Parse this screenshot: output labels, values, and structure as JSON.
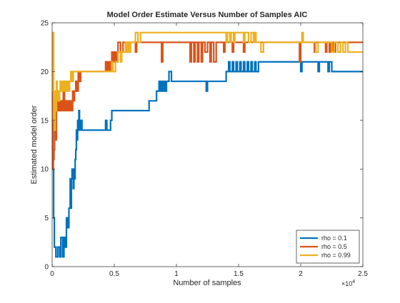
{
  "chart_data": {
    "type": "line",
    "title": "Model Order Estimate Versus Number of Samples AIC",
    "xlabel": "Number of samples",
    "ylabel": "Estimated model order",
    "xlim": [
      0,
      25000
    ],
    "ylim": [
      0,
      25
    ],
    "x_exponent_label": "×10",
    "x_exponent_power": "4",
    "x_ticks": [
      0,
      5000,
      10000,
      15000,
      20000,
      25000
    ],
    "x_tick_labels": [
      "0",
      "0.5",
      "1",
      "1.5",
      "2",
      "2.5"
    ],
    "y_ticks": [
      0,
      5,
      10,
      15,
      20,
      25
    ],
    "y_tick_labels": [
      "0",
      "5",
      "10",
      "15",
      "20",
      "25"
    ],
    "grid": false,
    "legend_position": "bottom-right",
    "series": [
      {
        "name": "rho = 0.1",
        "color": "#0072BD",
        "points": [
          [
            0,
            20
          ],
          [
            60,
            10
          ],
          [
            120,
            5
          ],
          [
            180,
            2
          ],
          [
            300,
            1
          ],
          [
            450,
            2
          ],
          [
            600,
            1
          ],
          [
            700,
            3
          ],
          [
            850,
            1
          ],
          [
            950,
            3
          ],
          [
            1050,
            2
          ],
          [
            1150,
            5
          ],
          [
            1250,
            4
          ],
          [
            1350,
            6
          ],
          [
            1450,
            9
          ],
          [
            1500,
            6
          ],
          [
            1550,
            9
          ],
          [
            1600,
            10
          ],
          [
            1700,
            8
          ],
          [
            1750,
            10
          ],
          [
            1800,
            9
          ],
          [
            1850,
            11
          ],
          [
            1900,
            12
          ],
          [
            1950,
            14
          ],
          [
            2000,
            13
          ],
          [
            2050,
            15
          ],
          [
            2100,
            14
          ],
          [
            2150,
            16
          ],
          [
            2200,
            14
          ],
          [
            2300,
            15
          ],
          [
            2400,
            14
          ],
          [
            4200,
            14
          ],
          [
            4300,
            15
          ],
          [
            4400,
            14
          ],
          [
            4600,
            14
          ],
          [
            4700,
            15
          ],
          [
            4800,
            16
          ],
          [
            7600,
            16
          ],
          [
            7800,
            17
          ],
          [
            8200,
            17
          ],
          [
            8400,
            18
          ],
          [
            8600,
            19
          ],
          [
            8700,
            18
          ],
          [
            8800,
            19
          ],
          [
            8900,
            18
          ],
          [
            9000,
            19
          ],
          [
            9100,
            18
          ],
          [
            9200,
            19
          ],
          [
            9400,
            20
          ],
          [
            9600,
            19
          ],
          [
            12300,
            19
          ],
          [
            12400,
            18
          ],
          [
            12500,
            19
          ],
          [
            13800,
            19
          ],
          [
            14000,
            20
          ],
          [
            14200,
            21
          ],
          [
            14300,
            20
          ],
          [
            14500,
            21
          ],
          [
            14600,
            20
          ],
          [
            14800,
            21
          ],
          [
            14900,
            20
          ],
          [
            15100,
            21
          ],
          [
            15200,
            20
          ],
          [
            15400,
            21
          ],
          [
            15500,
            20
          ],
          [
            15700,
            21
          ],
          [
            15800,
            20
          ],
          [
            16000,
            21
          ],
          [
            16100,
            20
          ],
          [
            16300,
            21
          ],
          [
            16400,
            20
          ],
          [
            16600,
            21
          ],
          [
            19900,
            21
          ],
          [
            20000,
            20
          ],
          [
            20100,
            21
          ],
          [
            21300,
            21
          ],
          [
            21400,
            20
          ],
          [
            21500,
            21
          ],
          [
            22000,
            21
          ],
          [
            22200,
            20
          ],
          [
            22300,
            21
          ],
          [
            22500,
            20
          ],
          [
            25000,
            20
          ]
        ]
      },
      {
        "name": "rho = 0.5",
        "color": "#D95319",
        "points": [
          [
            0,
            21
          ],
          [
            50,
            10
          ],
          [
            100,
            11
          ],
          [
            150,
            12
          ],
          [
            200,
            16
          ],
          [
            300,
            13
          ],
          [
            350,
            17
          ],
          [
            450,
            16
          ],
          [
            500,
            17
          ],
          [
            600,
            16
          ],
          [
            700,
            17
          ],
          [
            800,
            16
          ],
          [
            900,
            18
          ],
          [
            1000,
            16
          ],
          [
            1100,
            17
          ],
          [
            1200,
            16
          ],
          [
            1300,
            17
          ],
          [
            1400,
            16
          ],
          [
            1500,
            17
          ],
          [
            1600,
            16
          ],
          [
            1650,
            18
          ],
          [
            1700,
            17
          ],
          [
            1800,
            18
          ],
          [
            1900,
            19
          ],
          [
            2000,
            18
          ],
          [
            2100,
            20
          ],
          [
            2200,
            19
          ],
          [
            2300,
            20
          ],
          [
            4200,
            20
          ],
          [
            4300,
            21
          ],
          [
            4400,
            20
          ],
          [
            4500,
            21
          ],
          [
            4600,
            20
          ],
          [
            4700,
            21
          ],
          [
            4800,
            22
          ],
          [
            4900,
            21
          ],
          [
            5000,
            22
          ],
          [
            5100,
            21
          ],
          [
            5200,
            22
          ],
          [
            5300,
            23
          ],
          [
            5500,
            22
          ],
          [
            5700,
            23
          ],
          [
            5900,
            22
          ],
          [
            6100,
            23
          ],
          [
            6200,
            22
          ],
          [
            6300,
            23
          ],
          [
            6600,
            23
          ],
          [
            6700,
            22
          ],
          [
            6800,
            23
          ],
          [
            8700,
            23
          ],
          [
            8800,
            21
          ],
          [
            8900,
            23
          ],
          [
            11000,
            23
          ],
          [
            11100,
            21
          ],
          [
            11200,
            23
          ],
          [
            11400,
            21
          ],
          [
            11500,
            23
          ],
          [
            11700,
            21
          ],
          [
            11800,
            23
          ],
          [
            12000,
            21
          ],
          [
            12100,
            23
          ],
          [
            12300,
            22
          ],
          [
            12500,
            23
          ],
          [
            12700,
            21
          ],
          [
            12800,
            23
          ],
          [
            13000,
            21
          ],
          [
            13200,
            23
          ],
          [
            13800,
            22
          ],
          [
            13900,
            23
          ],
          [
            14500,
            22
          ],
          [
            14600,
            23
          ],
          [
            15300,
            23
          ],
          [
            15400,
            22
          ],
          [
            15500,
            23
          ],
          [
            19800,
            23
          ],
          [
            19900,
            21
          ],
          [
            20000,
            23
          ],
          [
            21000,
            23
          ],
          [
            21100,
            22
          ],
          [
            21200,
            23
          ],
          [
            22000,
            22
          ],
          [
            22100,
            23
          ],
          [
            22300,
            22
          ],
          [
            22400,
            23
          ],
          [
            22600,
            22
          ],
          [
            22800,
            23
          ],
          [
            25000,
            23
          ]
        ]
      },
      {
        "name": "rho = 0.99",
        "color": "#EDB120",
        "points": [
          [
            0,
            24
          ],
          [
            40,
            18
          ],
          [
            80,
            24
          ],
          [
            120,
            15
          ],
          [
            160,
            17
          ],
          [
            200,
            14
          ],
          [
            250,
            18
          ],
          [
            300,
            16
          ],
          [
            350,
            19
          ],
          [
            400,
            17
          ],
          [
            450,
            18
          ],
          [
            550,
            17
          ],
          [
            600,
            18
          ],
          [
            650,
            19
          ],
          [
            750,
            18
          ],
          [
            850,
            19
          ],
          [
            950,
            18
          ],
          [
            1050,
            19
          ],
          [
            1100,
            18
          ],
          [
            1200,
            19
          ],
          [
            1300,
            18
          ],
          [
            1400,
            19
          ],
          [
            1500,
            20
          ],
          [
            1600,
            19
          ],
          [
            1700,
            20
          ],
          [
            4700,
            20
          ],
          [
            4800,
            21
          ],
          [
            4900,
            20
          ],
          [
            5100,
            21
          ],
          [
            5300,
            22
          ],
          [
            5500,
            21
          ],
          [
            5600,
            22
          ],
          [
            5800,
            22
          ],
          [
            5900,
            23
          ],
          [
            6000,
            22
          ],
          [
            6100,
            23
          ],
          [
            6200,
            22
          ],
          [
            6300,
            23
          ],
          [
            6500,
            23
          ],
          [
            6700,
            24
          ],
          [
            6900,
            23
          ],
          [
            7100,
            24
          ],
          [
            13900,
            24
          ],
          [
            14000,
            23
          ],
          [
            14100,
            24
          ],
          [
            14300,
            23
          ],
          [
            14400,
            24
          ],
          [
            14600,
            23
          ],
          [
            14700,
            24
          ],
          [
            15200,
            24
          ],
          [
            15400,
            23
          ],
          [
            15500,
            24
          ],
          [
            15800,
            23
          ],
          [
            16000,
            24
          ],
          [
            16200,
            23
          ],
          [
            16300,
            24
          ],
          [
            16400,
            23
          ],
          [
            16600,
            23
          ],
          [
            16800,
            22
          ],
          [
            17000,
            23
          ],
          [
            20000,
            23
          ],
          [
            20100,
            24
          ],
          [
            20200,
            23
          ],
          [
            21000,
            23
          ],
          [
            21200,
            22
          ],
          [
            21400,
            23
          ],
          [
            22400,
            23
          ],
          [
            22500,
            22
          ],
          [
            22700,
            23
          ],
          [
            23000,
            22
          ],
          [
            23200,
            23
          ],
          [
            23400,
            22
          ],
          [
            23600,
            23
          ],
          [
            23800,
            22
          ],
          [
            25000,
            22
          ]
        ]
      }
    ]
  }
}
